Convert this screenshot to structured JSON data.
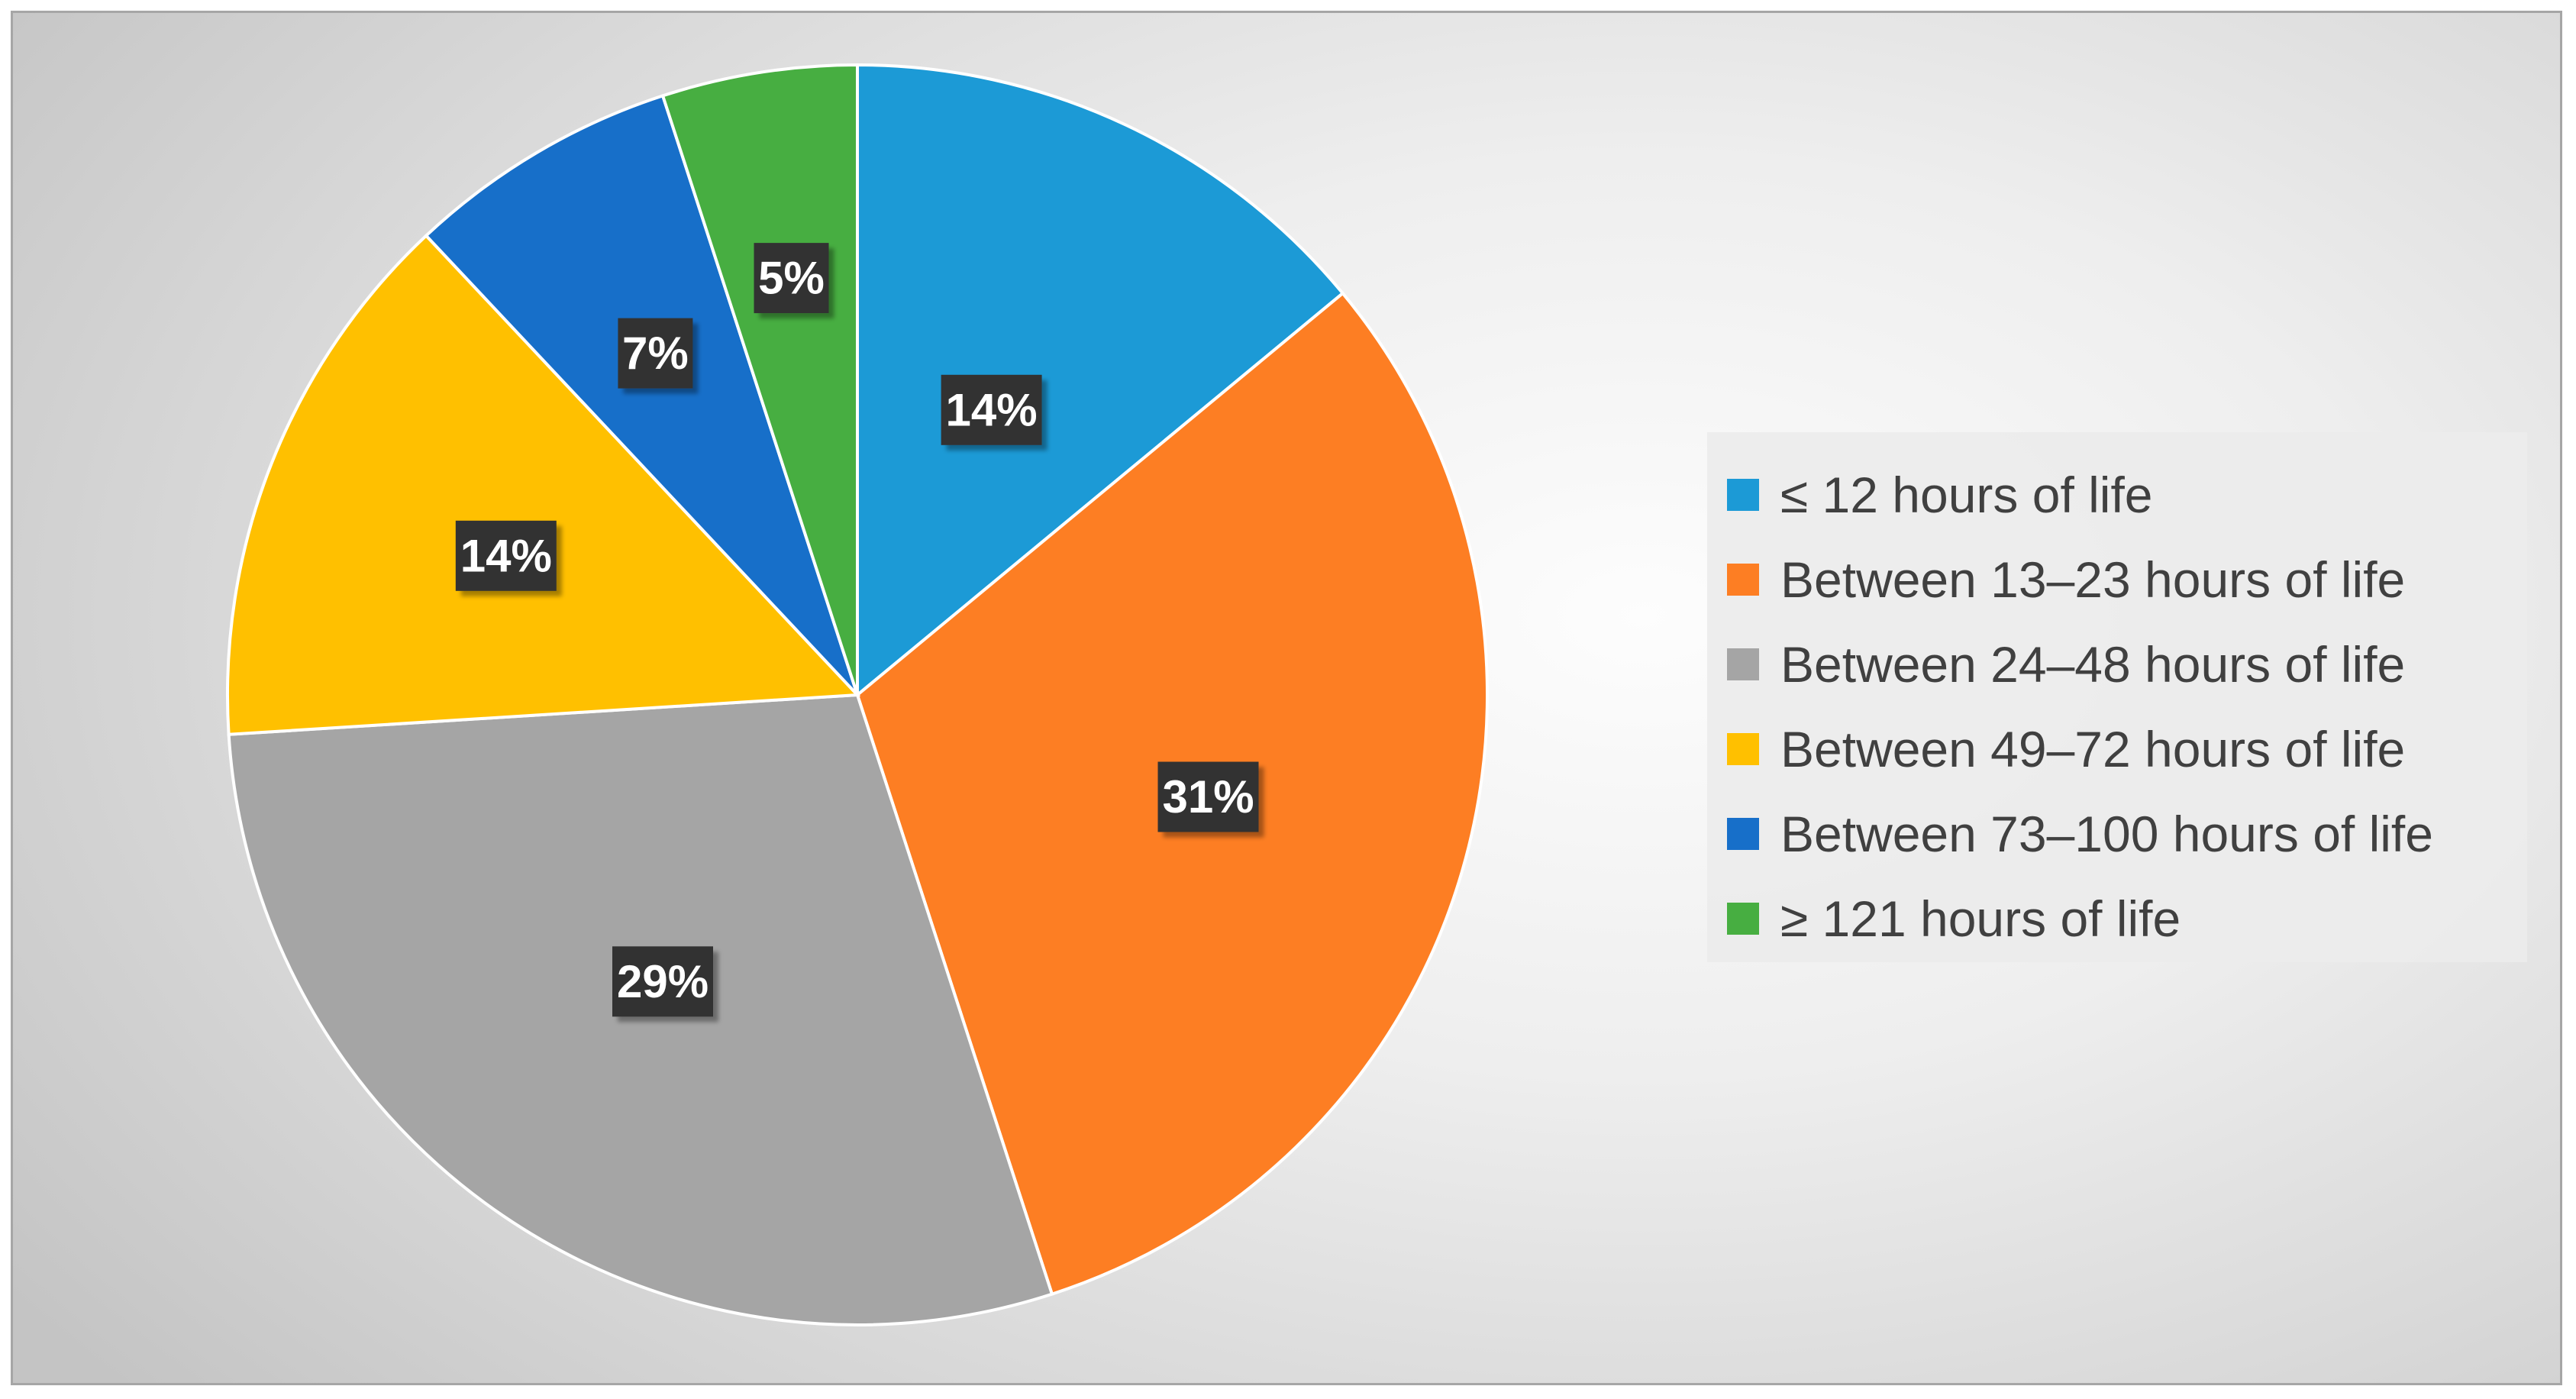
{
  "chart_data": {
    "type": "pie",
    "title": "",
    "categories": [
      "≤ 12 hours of life",
      "Between 13–23 hours of life",
      "Between 24–48 hours of life",
      "Between 49–72 hours of life",
      "Between 73–100 hours of life",
      "≥ 121 hours of life"
    ],
    "values": [
      14,
      31,
      29,
      14,
      7,
      5
    ],
    "value_labels": [
      "14%",
      "31%",
      "29%",
      "14%",
      "7%",
      "5%"
    ],
    "unit": "%",
    "colors": [
      "#1c9ad6",
      "#fd7e23",
      "#a5a5a5",
      "#ffc000",
      "#176fc9",
      "#47ae41"
    ],
    "label_color": "#ffffff",
    "label_background": "#333333",
    "legend_position": "right"
  }
}
